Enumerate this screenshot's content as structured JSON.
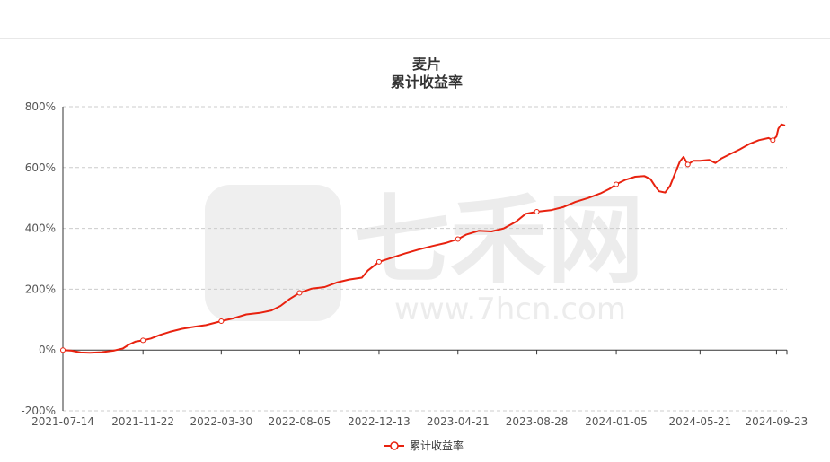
{
  "chart_data": {
    "type": "line",
    "title": "麦片",
    "subtitle": "累计收益率",
    "y_tick_labels": [
      "800%",
      "600%",
      "400%",
      "200%",
      "0%",
      "-200%"
    ],
    "y_ticks": [
      800,
      600,
      400,
      200,
      0,
      -200
    ],
    "ylim": [
      -200,
      800
    ],
    "x_tick_labels": [
      "2021-07-14",
      "2021-11-22",
      "2022-03-30",
      "2022-08-05",
      "2022-12-13",
      "2023-04-21",
      "2023-08-28",
      "2024-01-05",
      "2024-05-21",
      "2024-09-23"
    ],
    "xlim": [
      "2021-07-14",
      "2024-10-10"
    ],
    "grid": true,
    "legend": "bottom-center",
    "colors": {
      "line": "#e8220f",
      "axis": "#333333",
      "grid": "#cccccc"
    },
    "series": [
      {
        "name": "累计收益率",
        "points": [
          [
            "2021-07-14",
            0
          ],
          [
            "2021-07-28",
            -2
          ],
          [
            "2021-08-12",
            -8
          ],
          [
            "2021-08-27",
            -9
          ],
          [
            "2021-09-15",
            -7
          ],
          [
            "2021-10-05",
            -2
          ],
          [
            "2021-10-20",
            5
          ],
          [
            "2021-10-30",
            18
          ],
          [
            "2021-11-10",
            28
          ],
          [
            "2021-11-22",
            32
          ],
          [
            "2021-12-05",
            38
          ],
          [
            "2021-12-20",
            50
          ],
          [
            "2022-01-05",
            60
          ],
          [
            "2022-01-25",
            70
          ],
          [
            "2022-02-15",
            77
          ],
          [
            "2022-03-05",
            82
          ],
          [
            "2022-03-30",
            95
          ],
          [
            "2022-04-20",
            105
          ],
          [
            "2022-05-10",
            117
          ],
          [
            "2022-06-01",
            122
          ],
          [
            "2022-06-20",
            130
          ],
          [
            "2022-07-05",
            145
          ],
          [
            "2022-07-20",
            168
          ],
          [
            "2022-08-05",
            188
          ],
          [
            "2022-08-25",
            202
          ],
          [
            "2022-09-15",
            207
          ],
          [
            "2022-10-05",
            222
          ],
          [
            "2022-10-25",
            232
          ],
          [
            "2022-11-15",
            238
          ],
          [
            "2022-11-25",
            262
          ],
          [
            "2022-12-13",
            290
          ],
          [
            "2023-01-05",
            305
          ],
          [
            "2023-01-25",
            318
          ],
          [
            "2023-02-15",
            330
          ],
          [
            "2023-03-10",
            342
          ],
          [
            "2023-04-01",
            352
          ],
          [
            "2023-04-21",
            365
          ],
          [
            "2023-05-05",
            380
          ],
          [
            "2023-05-25",
            392
          ],
          [
            "2023-06-15",
            390
          ],
          [
            "2023-07-05",
            400
          ],
          [
            "2023-07-25",
            422
          ],
          [
            "2023-08-10",
            448
          ],
          [
            "2023-08-28",
            455
          ],
          [
            "2023-09-20",
            460
          ],
          [
            "2023-10-10",
            470
          ],
          [
            "2023-10-30",
            487
          ],
          [
            "2023-11-20",
            500
          ],
          [
            "2023-12-10",
            515
          ],
          [
            "2023-12-25",
            530
          ],
          [
            "2024-01-05",
            545
          ],
          [
            "2024-01-20",
            560
          ],
          [
            "2024-02-05",
            570
          ],
          [
            "2024-02-20",
            572
          ],
          [
            "2024-03-01",
            562
          ],
          [
            "2024-03-08",
            540
          ],
          [
            "2024-03-15",
            522
          ],
          [
            "2024-03-25",
            518
          ],
          [
            "2024-04-02",
            540
          ],
          [
            "2024-04-10",
            580
          ],
          [
            "2024-04-18",
            620
          ],
          [
            "2024-04-24",
            635
          ],
          [
            "2024-05-01",
            610
          ],
          [
            "2024-05-10",
            622
          ],
          [
            "2024-05-21",
            622
          ],
          [
            "2024-06-05",
            625
          ],
          [
            "2024-06-15",
            615
          ],
          [
            "2024-06-25",
            630
          ],
          [
            "2024-07-10",
            645
          ],
          [
            "2024-07-25",
            660
          ],
          [
            "2024-08-10",
            678
          ],
          [
            "2024-08-25",
            690
          ],
          [
            "2024-09-10",
            697
          ],
          [
            "2024-09-17",
            690
          ],
          [
            "2024-09-23",
            702
          ],
          [
            "2024-09-26",
            728
          ],
          [
            "2024-10-01",
            742
          ],
          [
            "2024-10-07",
            738
          ]
        ],
        "markers": [
          [
            "2021-07-14",
            0
          ],
          [
            "2021-11-22",
            32
          ],
          [
            "2022-03-30",
            95
          ],
          [
            "2022-08-05",
            188
          ],
          [
            "2022-12-13",
            290
          ],
          [
            "2023-04-21",
            365
          ],
          [
            "2023-08-28",
            455
          ],
          [
            "2024-01-05",
            545
          ],
          [
            "2024-05-01",
            610
          ],
          [
            "2024-09-17",
            690
          ]
        ]
      }
    ],
    "watermark": {
      "brand": "七禾网",
      "url": "www.7hcn.com"
    }
  }
}
